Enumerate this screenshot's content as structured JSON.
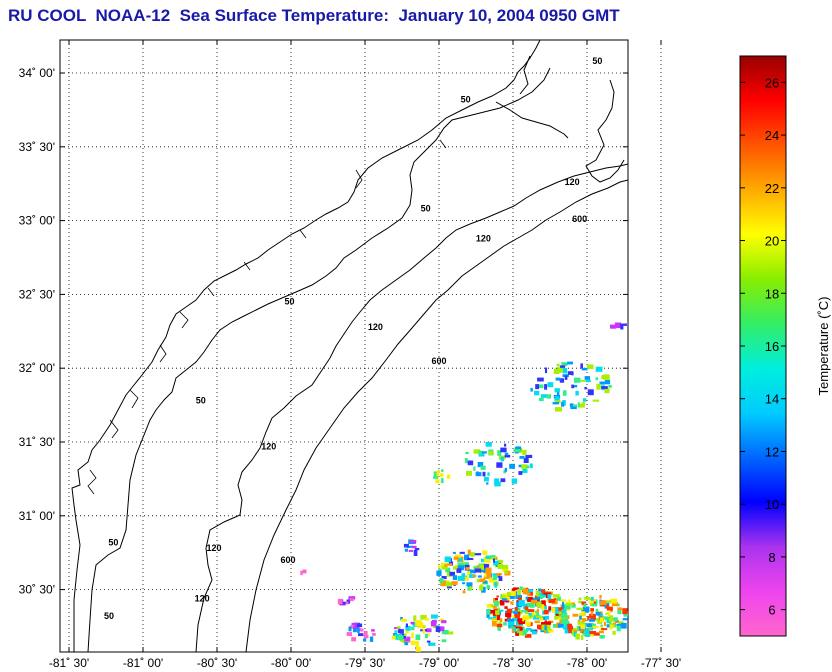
{
  "title": "RU COOL  NOAA-12  Sea Surface Temperature:  January 10, 2004 0950 GMT",
  "map": {
    "lat_labels": [
      {
        "label": "34˚ 00'",
        "lat": 34.0
      },
      {
        "label": "33˚ 30'",
        "lat": 33.5
      },
      {
        "label": "33˚ 00'",
        "lat": 33.0
      },
      {
        "label": "32˚ 30'",
        "lat": 32.5
      },
      {
        "label": "32˚ 00'",
        "lat": 32.0
      },
      {
        "label": "31˚ 30'",
        "lat": 31.5
      },
      {
        "label": "31˚ 00'",
        "lat": 31.0
      },
      {
        "label": "30˚ 30'",
        "lat": 30.5
      }
    ],
    "lon_labels": [
      {
        "label": "-81˚ 30'",
        "lon": -81.5
      },
      {
        "label": "-81˚ 00'",
        "lon": -81.0
      },
      {
        "label": "-80˚ 30'",
        "lon": -80.5
      },
      {
        "label": "-80˚ 00'",
        "lon": -80.0
      },
      {
        "label": "-79˚ 30'",
        "lon": -79.5
      },
      {
        "label": "-79˚ 00'",
        "lon": -79.0
      },
      {
        "label": "-78˚ 30'",
        "lon": -78.5
      },
      {
        "label": "-78˚ 00'",
        "lon": -78.0
      },
      {
        "label": "-77˚ 30'",
        "lon": -77.5
      }
    ],
    "contour_labels": [
      {
        "text": "50",
        "lon": -77.93,
        "lat": 34.06
      },
      {
        "text": "50",
        "lon": -78.82,
        "lat": 33.8
      },
      {
        "text": "50",
        "lon": -79.09,
        "lat": 33.06
      },
      {
        "text": "50",
        "lon": -80.01,
        "lat": 32.43
      },
      {
        "text": "50",
        "lon": -80.61,
        "lat": 31.76
      },
      {
        "text": "50",
        "lon": -81.2,
        "lat": 30.8
      },
      {
        "text": "50",
        "lon": -81.23,
        "lat": 30.3
      },
      {
        "text": "120",
        "lon": -78.1,
        "lat": 33.24
      },
      {
        "text": "120",
        "lon": -78.7,
        "lat": 32.86
      },
      {
        "text": "120",
        "lon": -79.43,
        "lat": 32.26
      },
      {
        "text": "120",
        "lon": -80.15,
        "lat": 31.45
      },
      {
        "text": "120",
        "lon": -80.52,
        "lat": 30.76
      },
      {
        "text": "120",
        "lon": -80.6,
        "lat": 30.42
      },
      {
        "text": "600",
        "lon": -78.05,
        "lat": 32.99
      },
      {
        "text": "600",
        "lon": -79.0,
        "lat": 32.03
      },
      {
        "text": "600",
        "lon": -80.02,
        "lat": 30.68
      }
    ]
  },
  "colorbar": {
    "title": "Temperature (˚C)",
    "range": [
      5,
      27
    ],
    "ticks": [
      "6",
      "8",
      "10",
      "12",
      "14",
      "16",
      "18",
      "20",
      "22",
      "24",
      "26"
    ],
    "stops": [
      "#ff66cc",
      "#ee44ee",
      "#aa33ee",
      "#0000ff",
      "#0066ff",
      "#00ccff",
      "#00eedd",
      "#33ee66",
      "#88ee00",
      "#ffff00",
      "#ffaa00",
      "#ff5500",
      "#ff0000",
      "#990000"
    ]
  },
  "colors": {
    "title": "#1a1aa8",
    "coast": "#000000",
    "grid": "#000000"
  }
}
